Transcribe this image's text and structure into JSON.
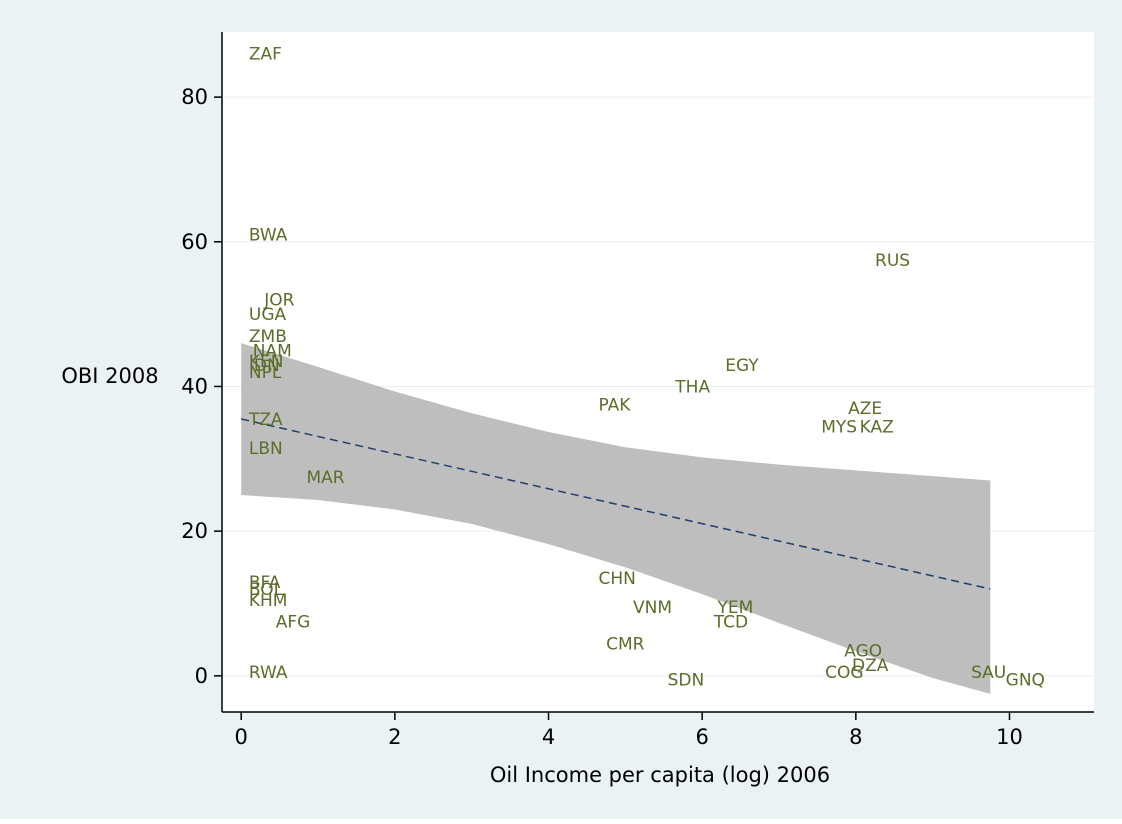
{
  "chart_data": {
    "type": "scatter",
    "title": "",
    "xlabel": "Oil Income per capita (log) 2006",
    "ylabel": "OBI 2008",
    "xlim": [
      -0.25,
      11.1
    ],
    "ylim": [
      -5,
      89
    ],
    "xticks": [
      0,
      2,
      4,
      6,
      8,
      10
    ],
    "yticks": [
      0,
      20,
      40,
      60,
      80
    ],
    "grid": "horizontal",
    "legend": "none",
    "colors": {
      "outer_background": "#eaf2f3",
      "plot_background": "#ffffff",
      "gridline": "#e6eef1",
      "point_label": "#5a6e2a",
      "confidence_band": "#bebebe",
      "fit_line": "#1f3f70"
    },
    "points": [
      {
        "label": "ZAF",
        "x": 0.1,
        "y": 86
      },
      {
        "label": "BWA",
        "x": 0.1,
        "y": 61
      },
      {
        "label": "JOR",
        "x": 0.3,
        "y": 52
      },
      {
        "label": "UGA",
        "x": 0.1,
        "y": 50
      },
      {
        "label": "ZMB",
        "x": 0.1,
        "y": 47
      },
      {
        "label": "NAM",
        "x": 0.15,
        "y": 45
      },
      {
        "label": "KEN",
        "x": 0.1,
        "y": 43.5
      },
      {
        "label": "IDN",
        "x": 0.1,
        "y": 43
      },
      {
        "label": "NPL",
        "x": 0.1,
        "y": 42
      },
      {
        "label": "TZA",
        "x": 0.1,
        "y": 35.5
      },
      {
        "label": "LBN",
        "x": 0.1,
        "y": 31.5
      },
      {
        "label": "MAR",
        "x": 0.85,
        "y": 27.5
      },
      {
        "label": "BFA",
        "x": 0.1,
        "y": 13
      },
      {
        "label": "BOL",
        "x": 0.1,
        "y": 12
      },
      {
        "label": "KHM",
        "x": 0.1,
        "y": 10.5
      },
      {
        "label": "AFG",
        "x": 0.45,
        "y": 7.5
      },
      {
        "label": "RWA",
        "x": 0.1,
        "y": 0.5
      },
      {
        "label": "PAK",
        "x": 4.65,
        "y": 37.5
      },
      {
        "label": "THA",
        "x": 5.65,
        "y": 40
      },
      {
        "label": "EGY",
        "x": 6.3,
        "y": 43
      },
      {
        "label": "RUS",
        "x": 8.25,
        "y": 57.5
      },
      {
        "label": "AZE",
        "x": 7.9,
        "y": 37
      },
      {
        "label": "MYS",
        "x": 7.55,
        "y": 34.5
      },
      {
        "label": "KAZ",
        "x": 8.05,
        "y": 34.5
      },
      {
        "label": "CHN",
        "x": 4.65,
        "y": 13.5
      },
      {
        "label": "VNM",
        "x": 5.1,
        "y": 9.5
      },
      {
        "label": "YEM",
        "x": 6.2,
        "y": 9.5
      },
      {
        "label": "TCD",
        "x": 6.15,
        "y": 7.5
      },
      {
        "label": "CMR",
        "x": 4.75,
        "y": 4.5
      },
      {
        "label": "SDN",
        "x": 5.55,
        "y": -0.5
      },
      {
        "label": "AGO",
        "x": 7.85,
        "y": 3.5
      },
      {
        "label": "DZA",
        "x": 7.95,
        "y": 1.5
      },
      {
        "label": "COG",
        "x": 7.6,
        "y": 0.5
      },
      {
        "label": "SAU",
        "x": 9.5,
        "y": 0.5
      },
      {
        "label": "GNQ",
        "x": 9.95,
        "y": -0.5
      }
    ],
    "fit_line": {
      "x": [
        0,
        9.75
      ],
      "y": [
        35.5,
        12
      ],
      "style": "dashed"
    },
    "confidence_band": {
      "x": [
        0,
        1,
        2,
        3,
        4,
        5,
        6,
        7,
        8,
        9,
        9.75
      ],
      "upper": [
        46,
        42.7,
        39.3,
        36.3,
        33.7,
        31.6,
        30.2,
        29.2,
        28.4,
        27.6,
        27
      ],
      "lower": [
        25,
        24.3,
        23,
        21,
        18.2,
        15,
        11.3,
        7.3,
        3.4,
        -0.3,
        -2.5
      ]
    }
  }
}
